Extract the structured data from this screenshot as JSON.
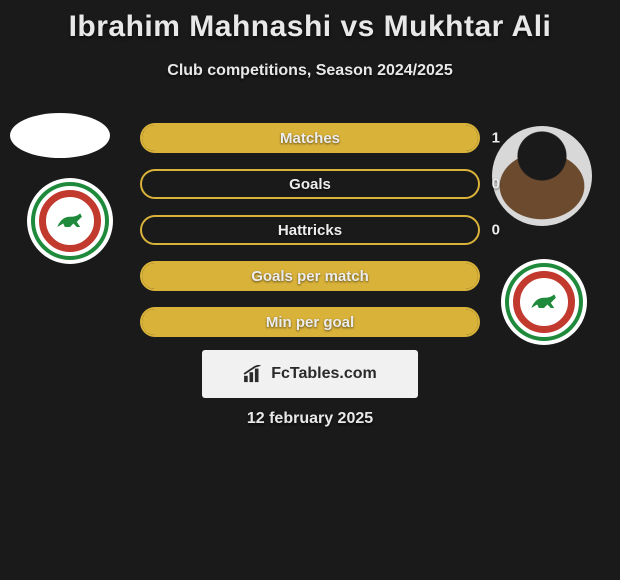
{
  "title": "Ibrahim Mahnashi vs Mukhtar Ali",
  "subtitle": "Club competitions, Season 2024/2025",
  "date": "12 february 2025",
  "brand": "FcTables.com",
  "colors": {
    "background": "#1a1a1a",
    "bar_fill": "#d9b23a",
    "bar_border": "#d9b23a",
    "text": "#e8e8e8",
    "brand_bg": "#f1f1f1",
    "brand_text": "#2a2a2a",
    "badge_green": "#1f8a3b",
    "badge_red": "#c23a2e"
  },
  "stats": [
    {
      "label": "Matches",
      "right_value": "1",
      "right_fill_pct": 100
    },
    {
      "label": "Goals",
      "right_value": "0",
      "right_fill_pct": 0
    },
    {
      "label": "Hattricks",
      "right_value": "0",
      "right_fill_pct": 0
    },
    {
      "label": "Goals per match",
      "right_value": "",
      "right_fill_pct": 100
    },
    {
      "label": "Min per goal",
      "right_value": "",
      "right_fill_pct": 100
    }
  ],
  "players": {
    "left": {
      "name": "Ibrahim Mahnashi",
      "club": "Ettifaq FC"
    },
    "right": {
      "name": "Mukhtar Ali",
      "club": "Ettifaq FC"
    }
  }
}
